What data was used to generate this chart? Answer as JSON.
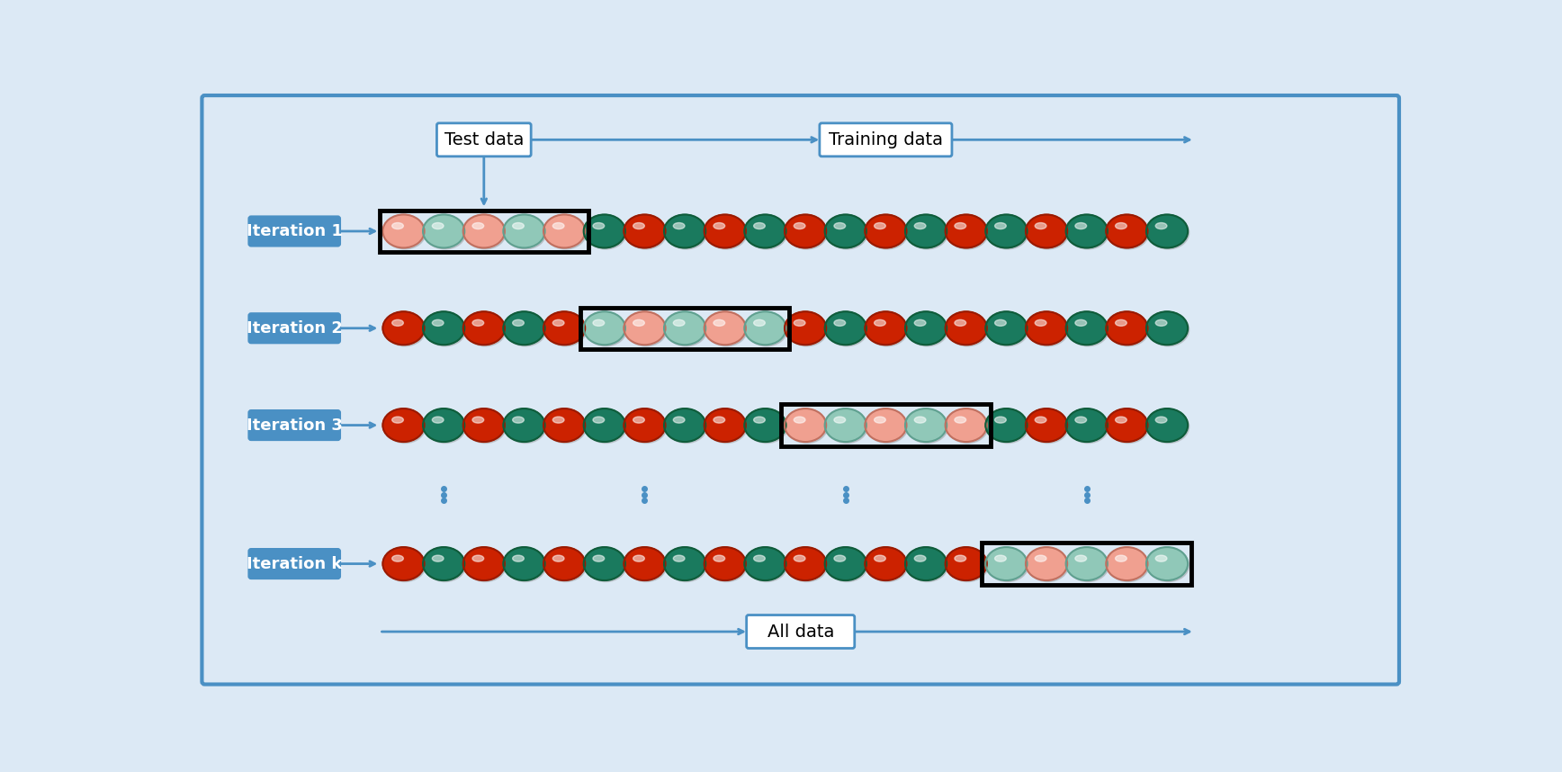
{
  "background_color": "#dce9f5",
  "border_color": "#4a90c4",
  "iterations": [
    "Iteration 1",
    "Iteration 2",
    "Iteration 3",
    "Iteration k"
  ],
  "n_balls": 20,
  "n_test_balls": 5,
  "test_starts": [
    0,
    5,
    10,
    15
  ],
  "train_red": "#cc2200",
  "train_teal": "#1a7a5e",
  "test_red": "#f0a090",
  "test_teal": "#90c8b8",
  "train_red_edge": "#991a00",
  "train_teal_edge": "#0f5c3a",
  "test_red_edge": "#c07060",
  "test_teal_edge": "#60a090",
  "arrow_color": "#4a90c4",
  "label_bg": "#4a90c4",
  "label_fg": "white",
  "title_test": "Test data",
  "title_training": "Training data",
  "title_all": "All data",
  "fig_width": 17.36,
  "fig_height": 8.58,
  "dpi": 100
}
